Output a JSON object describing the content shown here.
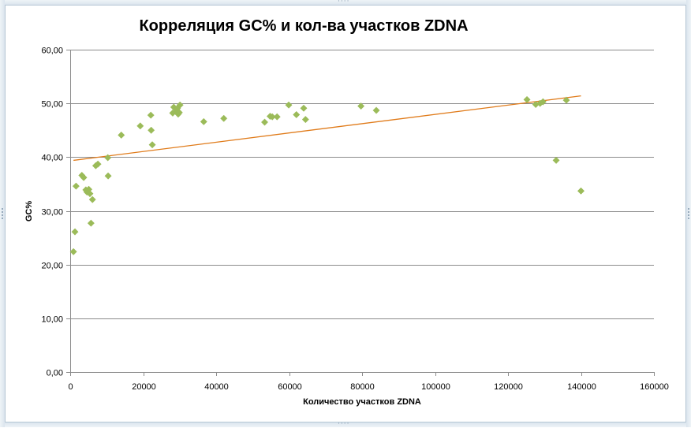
{
  "chart_data": {
    "type": "scatter",
    "title": "Корреляция GC% и кол-ва участков ZDNA",
    "xlabel": "Количество  участков  ZDNA",
    "ylabel": "GC%",
    "xlim": [
      0,
      160000
    ],
    "ylim": [
      0,
      60
    ],
    "x_ticks": [
      0,
      20000,
      40000,
      60000,
      80000,
      100000,
      120000,
      140000,
      160000
    ],
    "x_tick_labels": [
      "0",
      "20000",
      "40000",
      "60000",
      "80000",
      "100000",
      "120000",
      "140000",
      "160000"
    ],
    "y_ticks": [
      0,
      10,
      20,
      30,
      40,
      50,
      60
    ],
    "y_tick_labels": [
      "0,00",
      "10,00",
      "20,00",
      "30,00",
      "40,00",
      "50,00",
      "60,00"
    ],
    "grid": "horizontal",
    "legend": "none",
    "series": [
      {
        "marker": "diamond",
        "color": "#9bbb59",
        "points": [
          [
            900,
            22.4
          ],
          [
            1300,
            26.1
          ],
          [
            1600,
            34.6
          ],
          [
            3200,
            36.6
          ],
          [
            3700,
            36.2
          ],
          [
            4300,
            33.9
          ],
          [
            4600,
            33.5
          ],
          [
            5100,
            34.0
          ],
          [
            5400,
            33.2
          ],
          [
            5700,
            27.7
          ],
          [
            6100,
            32.1
          ],
          [
            7000,
            38.4
          ],
          [
            7600,
            38.7
          ],
          [
            10300,
            39.9
          ],
          [
            10400,
            36.5
          ],
          [
            14000,
            44.1
          ],
          [
            19200,
            45.8
          ],
          [
            22100,
            47.8
          ],
          [
            22200,
            45.0
          ],
          [
            22500,
            42.3
          ],
          [
            28100,
            48.2
          ],
          [
            28400,
            49.3
          ],
          [
            29300,
            48.6
          ],
          [
            29400,
            49.1
          ],
          [
            29600,
            48.0
          ],
          [
            29900,
            48.3
          ],
          [
            30100,
            49.7
          ],
          [
            36600,
            46.6
          ],
          [
            42100,
            47.2
          ],
          [
            53300,
            46.5
          ],
          [
            54800,
            47.6
          ],
          [
            55400,
            47.5
          ],
          [
            56700,
            47.5
          ],
          [
            59900,
            49.7
          ],
          [
            62000,
            47.9
          ],
          [
            64000,
            49.1
          ],
          [
            64500,
            47.0
          ],
          [
            79700,
            49.5
          ],
          [
            83900,
            48.7
          ],
          [
            125200,
            50.7
          ],
          [
            127600,
            49.8
          ],
          [
            128800,
            50.0
          ],
          [
            129600,
            50.3
          ],
          [
            133200,
            39.4
          ],
          [
            136000,
            50.6
          ],
          [
            140000,
            33.7
          ]
        ]
      }
    ],
    "trendline": {
      "type": "linear",
      "color": "#e07b1a",
      "from": [
        900,
        39.4
      ],
      "to": [
        140000,
        51.4
      ]
    }
  },
  "colors": {
    "marker": "#9bbb59",
    "trendline": "#e07b1a",
    "gridline": "#8c8c8c",
    "axis": "#8c8c8c"
  }
}
